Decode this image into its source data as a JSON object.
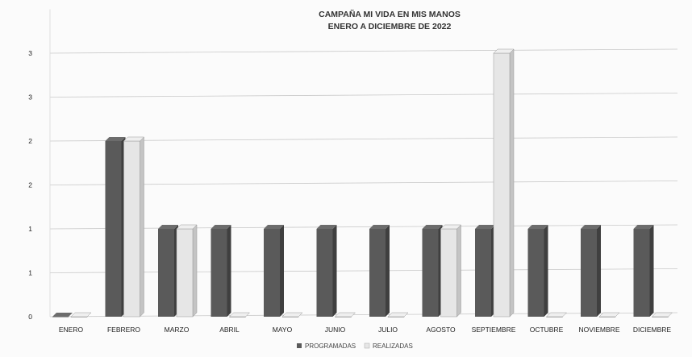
{
  "chart_data": {
    "type": "bar",
    "title": "CAMPAÑA MI VIDA EN MIS MANOS",
    "subtitle": "ENERO A DICIEMBRE DE 2022",
    "categories": [
      "ENERO",
      "FEBRERO",
      "MARZO",
      "ABRIL",
      "MAYO",
      "JUNIO",
      "JULIO",
      "AGOSTO",
      "SEPTIEMBRE",
      "OCTUBRE",
      "NOVIEMBRE",
      "DICIEMBRE"
    ],
    "series": [
      {
        "name": "PROGRAMADAS",
        "values": [
          0,
          2,
          1,
          1,
          1,
          1,
          1,
          1,
          1,
          1,
          1,
          1
        ],
        "color": "#5a5a5a"
      },
      {
        "name": "REALIZADAS",
        "values": [
          0,
          2,
          1,
          0,
          0,
          0,
          0,
          1,
          3,
          0,
          0,
          0
        ],
        "color": "#e6e6e6"
      }
    ],
    "y_tick_labels": [
      "0",
      "1",
      "1",
      "2",
      "2",
      "3",
      "3"
    ],
    "ylim": [
      0,
      3.5
    ],
    "grid": true,
    "legend_position": "bottom"
  }
}
